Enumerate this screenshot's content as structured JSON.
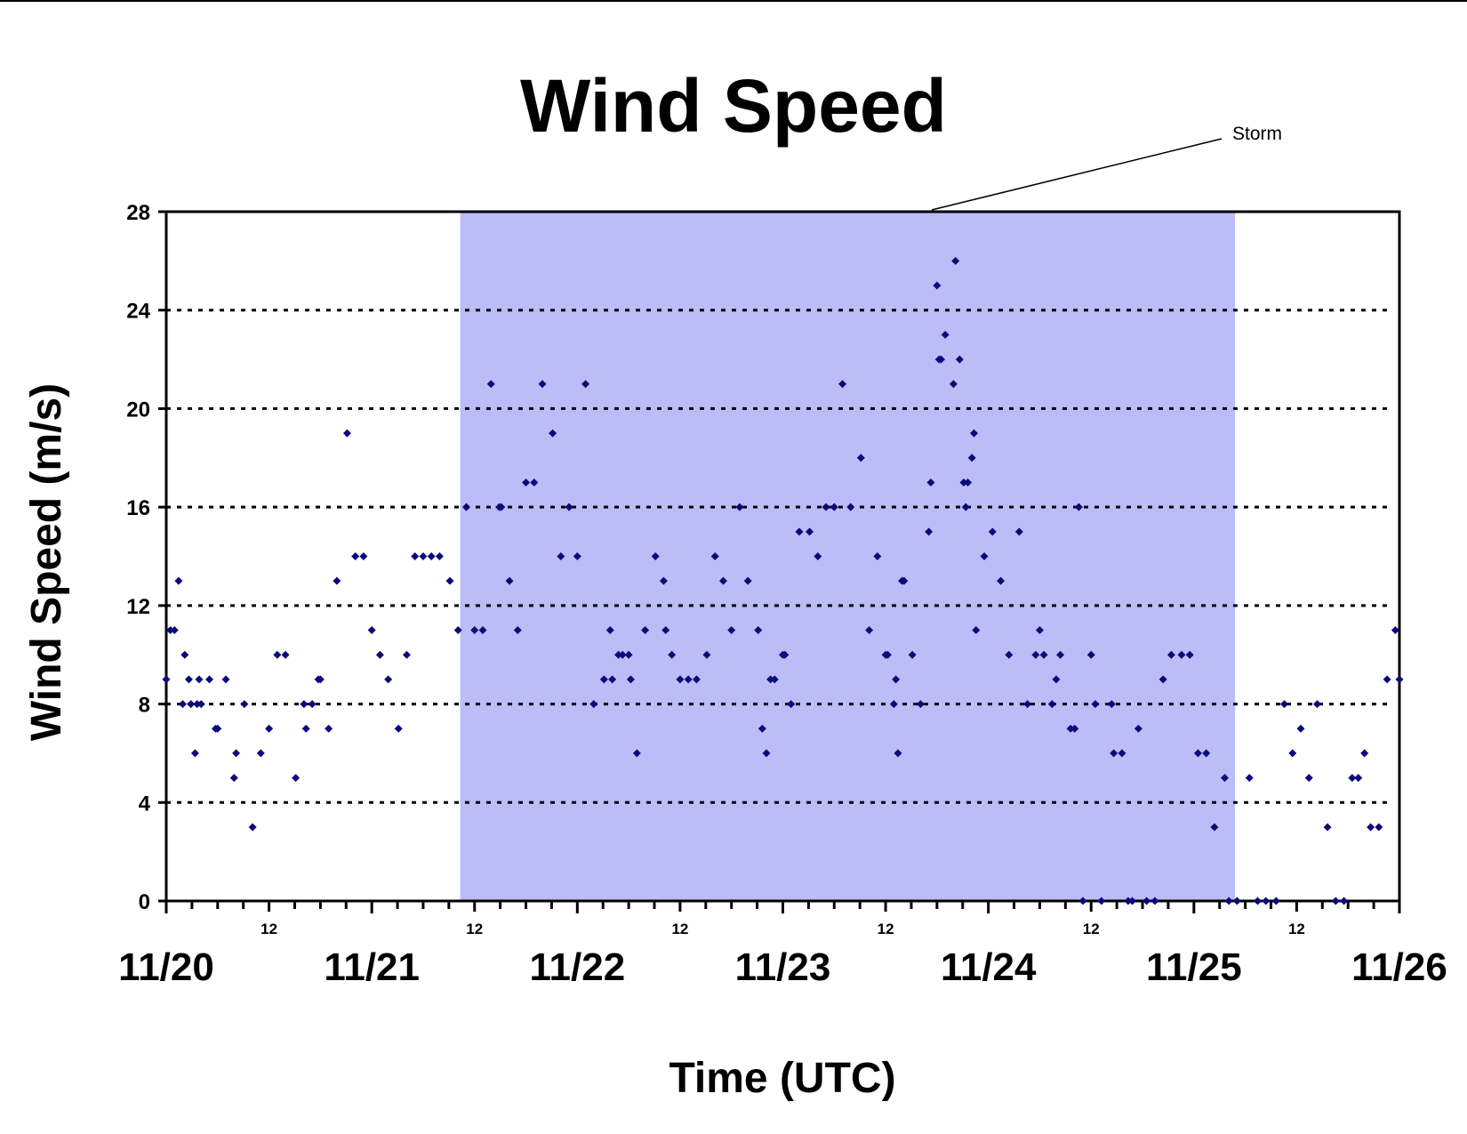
{
  "chart_data": {
    "type": "scatter",
    "title": "Wind Speed",
    "xlabel": "Time (UTC)",
    "ylabel": "Wind Speed (m/s)",
    "x_unit": "days since 11/20 00:00 UTC",
    "xlim": [
      0,
      6
    ],
    "ylim": [
      0,
      28
    ],
    "y_ticks": [
      0,
      4,
      8,
      12,
      16,
      20,
      24,
      28
    ],
    "gridlines": [
      4,
      8,
      12,
      16,
      20,
      24
    ],
    "x_major_ticks": [
      {
        "x": 0,
        "label": "11/20"
      },
      {
        "x": 1,
        "label": "11/21"
      },
      {
        "x": 2,
        "label": "11/22"
      },
      {
        "x": 3,
        "label": "11/23"
      },
      {
        "x": 4,
        "label": "11/24"
      },
      {
        "x": 5,
        "label": "11/25"
      },
      {
        "x": 6,
        "label": "11/26"
      }
    ],
    "x_minor_ticks": [
      {
        "x": 0.5,
        "label": "12"
      },
      {
        "x": 1.5,
        "label": "12"
      },
      {
        "x": 2.5,
        "label": "12"
      },
      {
        "x": 3.5,
        "label": "12"
      },
      {
        "x": 4.5,
        "label": "12"
      },
      {
        "x": 5.5,
        "label": "12"
      }
    ],
    "shaded_region": {
      "x_start": 1.43,
      "x_end": 5.2,
      "color": "#bcbcf8"
    },
    "annotation": {
      "text": "Storm"
    },
    "marker_color": "#0a0a7a",
    "series": [
      {
        "points": [
          [
            0.0,
            9
          ],
          [
            0.02,
            11
          ],
          [
            0.04,
            11
          ],
          [
            0.06,
            13
          ],
          [
            0.08,
            8
          ],
          [
            0.09,
            10
          ],
          [
            0.11,
            9
          ],
          [
            0.12,
            8
          ],
          [
            0.14,
            6
          ],
          [
            0.15,
            8
          ],
          [
            0.16,
            9
          ],
          [
            0.17,
            8
          ],
          [
            0.21,
            9
          ],
          [
            0.24,
            7
          ],
          [
            0.25,
            7
          ],
          [
            0.29,
            9
          ],
          [
            0.33,
            5
          ],
          [
            0.34,
            6
          ],
          [
            0.38,
            8
          ],
          [
            0.42,
            3
          ],
          [
            0.46,
            6
          ],
          [
            0.5,
            7
          ],
          [
            0.54,
            10
          ],
          [
            0.58,
            10
          ],
          [
            0.63,
            5
          ],
          [
            0.67,
            8
          ],
          [
            0.68,
            7
          ],
          [
            0.71,
            8
          ],
          [
            0.74,
            9
          ],
          [
            0.75,
            9
          ],
          [
            0.79,
            7
          ],
          [
            0.83,
            13
          ],
          [
            0.88,
            19
          ],
          [
            0.92,
            14
          ],
          [
            0.96,
            14
          ],
          [
            1.0,
            11
          ],
          [
            1.04,
            10
          ],
          [
            1.08,
            9
          ],
          [
            1.13,
            7
          ],
          [
            1.17,
            10
          ],
          [
            1.21,
            14
          ],
          [
            1.25,
            14
          ],
          [
            1.29,
            14
          ],
          [
            1.33,
            14
          ],
          [
            1.38,
            13
          ],
          [
            1.42,
            11
          ],
          [
            1.46,
            16
          ],
          [
            1.5,
            11
          ],
          [
            1.54,
            11
          ],
          [
            1.58,
            21
          ],
          [
            1.62,
            16
          ],
          [
            1.63,
            16
          ],
          [
            1.67,
            13
          ],
          [
            1.71,
            11
          ],
          [
            1.75,
            17
          ],
          [
            1.79,
            17
          ],
          [
            1.83,
            21
          ],
          [
            1.88,
            19
          ],
          [
            1.92,
            14
          ],
          [
            1.96,
            16
          ],
          [
            2.0,
            14
          ],
          [
            2.04,
            21
          ],
          [
            2.08,
            8
          ],
          [
            2.13,
            9
          ],
          [
            2.16,
            11
          ],
          [
            2.17,
            9
          ],
          [
            2.2,
            10
          ],
          [
            2.22,
            10
          ],
          [
            2.25,
            10
          ],
          [
            2.26,
            9
          ],
          [
            2.29,
            6
          ],
          [
            2.33,
            11
          ],
          [
            2.38,
            14
          ],
          [
            2.42,
            13
          ],
          [
            2.43,
            11
          ],
          [
            2.46,
            10
          ],
          [
            2.5,
            9
          ],
          [
            2.54,
            9
          ],
          [
            2.58,
            9
          ],
          [
            2.63,
            10
          ],
          [
            2.67,
            14
          ],
          [
            2.71,
            13
          ],
          [
            2.75,
            11
          ],
          [
            2.79,
            16
          ],
          [
            2.83,
            13
          ],
          [
            2.88,
            11
          ],
          [
            2.9,
            7
          ],
          [
            2.92,
            6
          ],
          [
            2.94,
            9
          ],
          [
            2.96,
            9
          ],
          [
            3.0,
            10
          ],
          [
            3.01,
            10
          ],
          [
            3.04,
            8
          ],
          [
            3.08,
            15
          ],
          [
            3.13,
            15
          ],
          [
            3.17,
            14
          ],
          [
            3.21,
            16
          ],
          [
            3.25,
            16
          ],
          [
            3.29,
            21
          ],
          [
            3.33,
            16
          ],
          [
            3.38,
            18
          ],
          [
            3.42,
            11
          ],
          [
            3.46,
            14
          ],
          [
            3.5,
            10
          ],
          [
            3.51,
            10
          ],
          [
            3.54,
            8
          ],
          [
            3.55,
            9
          ],
          [
            3.56,
            6
          ],
          [
            3.58,
            13
          ],
          [
            3.59,
            13
          ],
          [
            3.63,
            10
          ],
          [
            3.67,
            8
          ],
          [
            3.71,
            15
          ],
          [
            3.72,
            17
          ],
          [
            3.75,
            25
          ],
          [
            3.76,
            22
          ],
          [
            3.77,
            22
          ],
          [
            3.79,
            23
          ],
          [
            3.83,
            21
          ],
          [
            3.84,
            26
          ],
          [
            3.86,
            22
          ],
          [
            3.88,
            17
          ],
          [
            3.89,
            16
          ],
          [
            3.9,
            17
          ],
          [
            3.92,
            18
          ],
          [
            3.93,
            19
          ],
          [
            3.94,
            11
          ],
          [
            3.98,
            14
          ],
          [
            4.02,
            15
          ],
          [
            4.06,
            13
          ],
          [
            4.1,
            10
          ],
          [
            4.15,
            15
          ],
          [
            4.19,
            8
          ],
          [
            4.23,
            10
          ],
          [
            4.25,
            11
          ],
          [
            4.27,
            10
          ],
          [
            4.31,
            8
          ],
          [
            4.33,
            9
          ],
          [
            4.35,
            10
          ],
          [
            4.4,
            7
          ],
          [
            4.42,
            7
          ],
          [
            4.44,
            16
          ],
          [
            4.46,
            0
          ],
          [
            4.5,
            10
          ],
          [
            4.52,
            8
          ],
          [
            4.55,
            0
          ],
          [
            4.6,
            8
          ],
          [
            4.61,
            6
          ],
          [
            4.65,
            6
          ],
          [
            4.68,
            0
          ],
          [
            4.7,
            0
          ],
          [
            4.73,
            7
          ],
          [
            4.77,
            0
          ],
          [
            4.81,
            0
          ],
          [
            4.85,
            9
          ],
          [
            4.89,
            10
          ],
          [
            4.94,
            10
          ],
          [
            4.98,
            10
          ],
          [
            5.02,
            6
          ],
          [
            5.06,
            6
          ],
          [
            5.1,
            3
          ],
          [
            5.15,
            5
          ],
          [
            5.17,
            0
          ],
          [
            5.21,
            0
          ],
          [
            5.27,
            5
          ],
          [
            5.31,
            0
          ],
          [
            5.35,
            0
          ],
          [
            5.4,
            0
          ],
          [
            5.44,
            8
          ],
          [
            5.48,
            6
          ],
          [
            5.52,
            7
          ],
          [
            5.56,
            5
          ],
          [
            5.6,
            8
          ],
          [
            5.65,
            3
          ],
          [
            5.69,
            0
          ],
          [
            5.73,
            0
          ],
          [
            5.77,
            5
          ],
          [
            5.8,
            5
          ],
          [
            5.83,
            6
          ],
          [
            5.86,
            3
          ],
          [
            5.9,
            3
          ],
          [
            5.94,
            9
          ],
          [
            5.98,
            11
          ],
          [
            6.0,
            9
          ]
        ]
      }
    ]
  }
}
